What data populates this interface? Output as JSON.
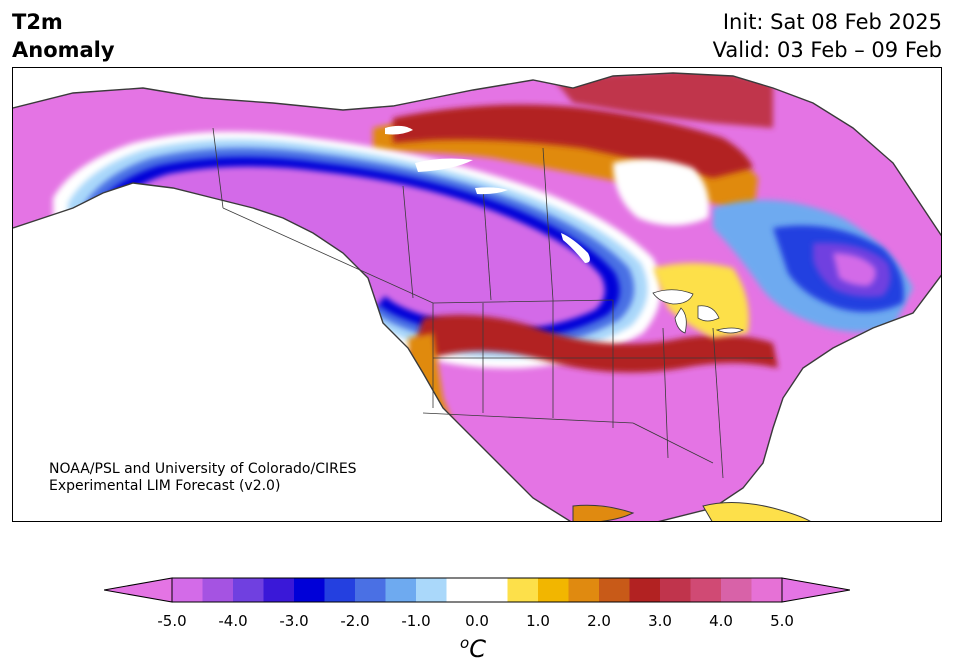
{
  "header": {
    "title_line1": "T2m",
    "title_line2": "Anomaly",
    "init_text": "Init: Sat 08 Feb 2025",
    "valid_text": "Valid: 03 Feb – 09 Feb"
  },
  "credit": {
    "line1": "NOAA/PSL and University of Colorado/CIRES",
    "line2": "Experimental LIM Forecast (v2.0)"
  },
  "colorbar": {
    "unit_super": "o",
    "unit_main": "C",
    "ticks": [
      "-5.0",
      "-4.0",
      "-3.0",
      "-2.0",
      "-1.0",
      "0.0",
      "1.0",
      "2.0",
      "3.0",
      "4.0",
      "5.0"
    ],
    "bins": [
      {
        "low": -5.0,
        "high": -4.5,
        "color": "#d36be8"
      },
      {
        "low": -4.5,
        "high": -4.0,
        "color": "#a553e2"
      },
      {
        "low": -4.0,
        "high": -3.5,
        "color": "#7040e0"
      },
      {
        "low": -3.5,
        "high": -3.0,
        "color": "#3a18d8"
      },
      {
        "low": -3.0,
        "high": -2.5,
        "color": "#0000d8"
      },
      {
        "low": -2.5,
        "high": -2.0,
        "color": "#2440e0"
      },
      {
        "low": -2.0,
        "high": -1.5,
        "color": "#4a70e4"
      },
      {
        "low": -1.5,
        "high": -1.0,
        "color": "#6eaaf0"
      },
      {
        "low": -1.0,
        "high": -0.5,
        "color": "#aad8fa"
      },
      {
        "low": -0.5,
        "high": 0.0,
        "color": "#ffffff"
      },
      {
        "low": 0.0,
        "high": 0.5,
        "color": "#ffffff"
      },
      {
        "low": 0.5,
        "high": 1.0,
        "color": "#fde04a"
      },
      {
        "low": 1.0,
        "high": 1.5,
        "color": "#f2b600"
      },
      {
        "low": 1.5,
        "high": 2.0,
        "color": "#e08a10"
      },
      {
        "low": 2.0,
        "high": 2.5,
        "color": "#c85a18"
      },
      {
        "low": 2.5,
        "high": 3.0,
        "color": "#b22222"
      },
      {
        "low": 3.0,
        "high": 3.5,
        "color": "#c0344c"
      },
      {
        "low": 3.5,
        "high": 4.0,
        "color": "#d04a74"
      },
      {
        "low": 4.0,
        "high": 4.5,
        "color": "#d862a8"
      },
      {
        "low": 4.5,
        "high": 5.0,
        "color": "#e671d6"
      }
    ],
    "under_color": "#e474e4",
    "over_color": "#e474e4"
  },
  "palette": {
    "warm_max": "#e671d6",
    "warm_red": "#b22222",
    "warm_rose": "#c8405a",
    "warm_orange": "#e08a10",
    "warm_yellow": "#fde04a",
    "cold_max": "#d36be8",
    "cold_deep": "#0000d8",
    "cold_mid": "#4a70e4",
    "cold_light": "#aad8fa",
    "violet": "#7040e0",
    "border_line": "#3a3a3a"
  }
}
